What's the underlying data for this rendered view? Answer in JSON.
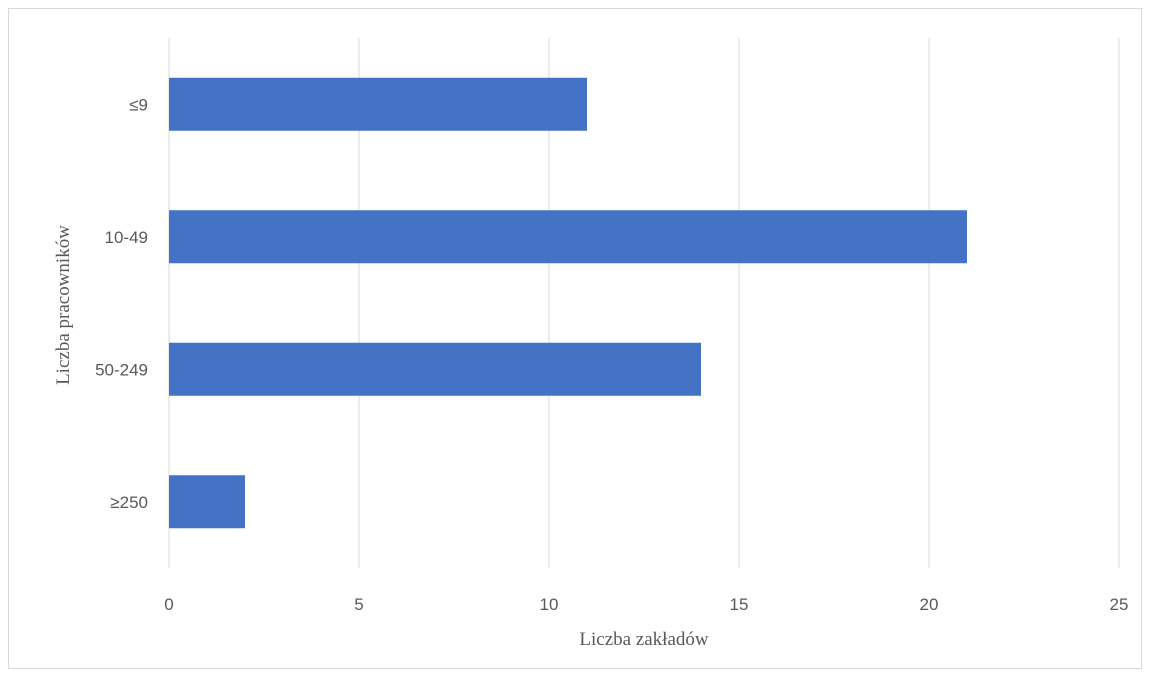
{
  "chart_data": {
    "type": "bar",
    "orientation": "horizontal",
    "categories": [
      "≤9",
      "10-49",
      "50-249",
      "≥250"
    ],
    "values": [
      11,
      21,
      14,
      2
    ],
    "xlabel": "Liczba zakładów",
    "ylabel": "Liczba pracowników",
    "xlim": [
      0,
      25
    ],
    "xticks": [
      0,
      5,
      10,
      15,
      20,
      25
    ],
    "xtick_labels": [
      "0",
      "5",
      "10",
      "15",
      "20",
      "25"
    ],
    "grid": "vertical",
    "bar_color": "#4472c4",
    "grid_color": "#d9d9d9",
    "legend": "none"
  }
}
